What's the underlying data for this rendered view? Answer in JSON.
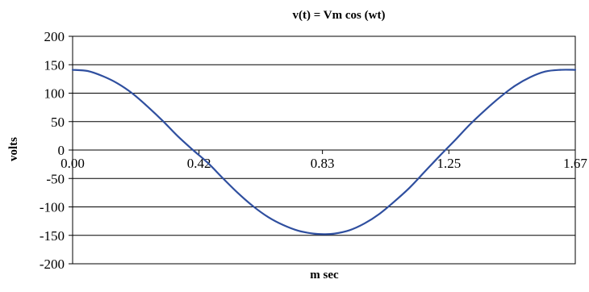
{
  "chart_data": {
    "type": "line",
    "title": "v(t) = Vm cos (wt)",
    "xlabel": "m sec",
    "ylabel": "volts",
    "x_tick_labels": [
      "0.00",
      "0.42",
      "0.83",
      "1.25",
      "1.67"
    ],
    "x_ticks": [
      0.0,
      0.42,
      0.83,
      1.25,
      1.67
    ],
    "xlim": [
      0.0,
      1.67
    ],
    "y_ticks": [
      200,
      150,
      100,
      50,
      0,
      -50,
      -100,
      -150,
      -200
    ],
    "ylim": [
      -200,
      200
    ],
    "grid": "horizontal",
    "legend": "none",
    "series": [
      {
        "color": "#2f4f9f",
        "x": [
          0.0,
          0.05,
          0.1,
          0.15,
          0.2,
          0.25,
          0.3,
          0.35,
          0.4,
          0.45,
          0.5,
          0.55,
          0.6,
          0.65,
          0.7,
          0.75,
          0.8,
          0.835,
          0.87,
          0.92,
          0.97,
          1.02,
          1.07,
          1.12,
          1.17,
          1.22,
          1.27,
          1.32,
          1.37,
          1.42,
          1.47,
          1.52,
          1.57,
          1.62,
          1.67
        ],
        "y": [
          141,
          139,
          130,
          117,
          99,
          76,
          51,
          24,
          0,
          -23,
          -50,
          -76,
          -99,
          -118,
          -132,
          -142,
          -147,
          -148,
          -147,
          -141,
          -129,
          -112,
          -90,
          -66,
          -38,
          -10,
          17,
          45,
          70,
          93,
          113,
          128,
          138,
          141,
          141
        ]
      }
    ]
  }
}
